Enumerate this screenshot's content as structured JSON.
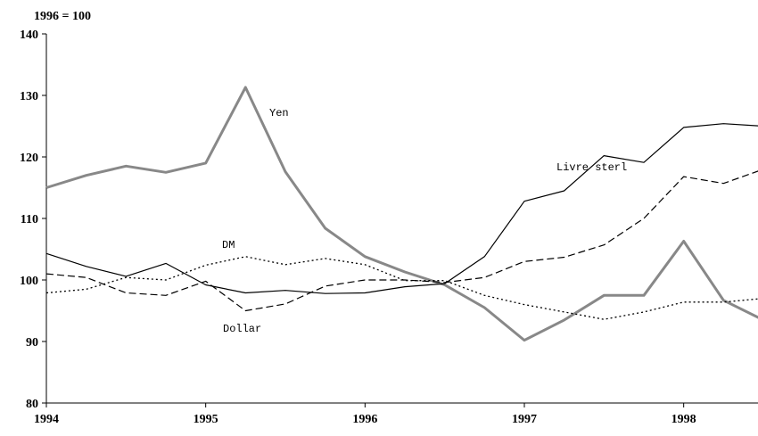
{
  "chart_data": {
    "type": "line",
    "y_label": "1996 = 100",
    "x": [
      1994,
      1994.25,
      1994.5,
      1994.75,
      1995,
      1995.25,
      1995.5,
      1995.75,
      1996,
      1996.25,
      1996.5,
      1996.75,
      1997,
      1997.25,
      1997.5,
      1997.75,
      1998,
      1998.25,
      1998.5
    ],
    "xlim": [
      1994,
      1998.5
    ],
    "xticks": [
      1994,
      1995,
      1996,
      1997,
      1998
    ],
    "ylim": [
      80,
      140
    ],
    "yticks": [
      80,
      90,
      100,
      110,
      120,
      130,
      140
    ],
    "series": [
      {
        "name": "Yen",
        "color": "#888888",
        "style": "solid-thick",
        "values": [
          115,
          117,
          118.5,
          117.5,
          119,
          131.3,
          117.6,
          108.4,
          103.8,
          101.3,
          99.2,
          95.5,
          90.2,
          93.5,
          97.5,
          97.5,
          106.3,
          96.7,
          93.5
        ]
      },
      {
        "name": "Livre sterl",
        "color": "#000000",
        "style": "solid",
        "values": [
          104.3,
          102.2,
          100.6,
          102.7,
          99.2,
          97.9,
          98.3,
          97.8,
          97.9,
          98.9,
          99.4,
          103.8,
          112.8,
          114.5,
          120.2,
          119.1,
          124.8,
          125.4,
          125.0
        ]
      },
      {
        "name": "DM",
        "color": "#000000",
        "style": "dashed",
        "values": [
          101,
          100.4,
          97.9,
          97.5,
          99.8,
          95,
          96.1,
          99,
          100,
          100,
          99.6,
          100.4,
          103,
          103.7,
          105.7,
          110,
          116.8,
          115.7,
          118
        ]
      },
      {
        "name": "Dollar",
        "color": "#000000",
        "style": "dotted",
        "values": [
          97.9,
          98.5,
          100.4,
          100,
          102.4,
          103.8,
          102.5,
          103.5,
          102.5,
          99.9,
          99.9,
          97.5,
          96,
          94.8,
          93.6,
          94.8,
          96.4,
          96.4,
          97
        ]
      }
    ]
  }
}
